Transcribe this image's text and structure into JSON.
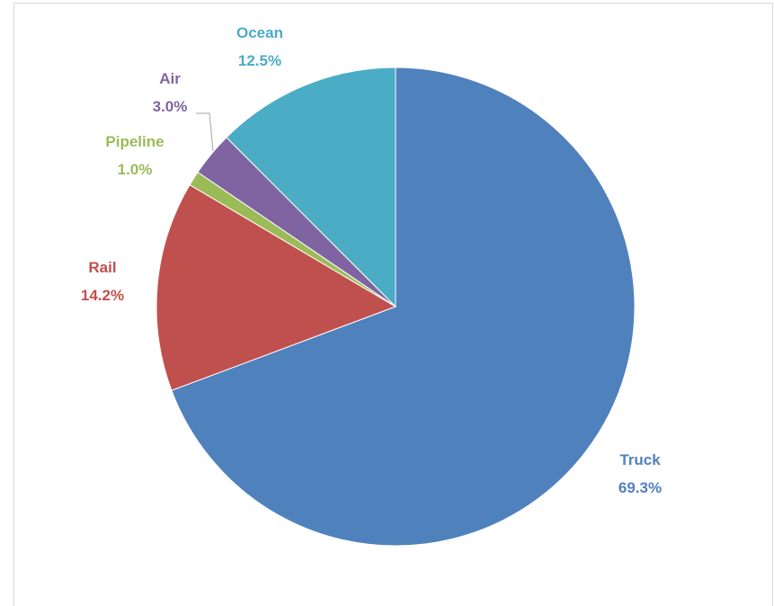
{
  "chart_data": {
    "type": "pie",
    "title": "",
    "start_angle_deg": 0,
    "direction": "clockwise",
    "legend": "none",
    "slices": [
      {
        "name": "Truck",
        "value": 69.3,
        "label": "69.3%",
        "color": "#4f81bd"
      },
      {
        "name": "Rail",
        "value": 14.2,
        "label": "14.2%",
        "color": "#c0504d"
      },
      {
        "name": "Pipeline",
        "value": 1.0,
        "label": "1.0%",
        "color": "#9bbb59"
      },
      {
        "name": "Air",
        "value": 3.0,
        "label": "3.0%",
        "color": "#8064a2"
      },
      {
        "name": "Ocean",
        "value": 12.5,
        "label": "12.5%",
        "color": "#4bacc6"
      }
    ]
  }
}
